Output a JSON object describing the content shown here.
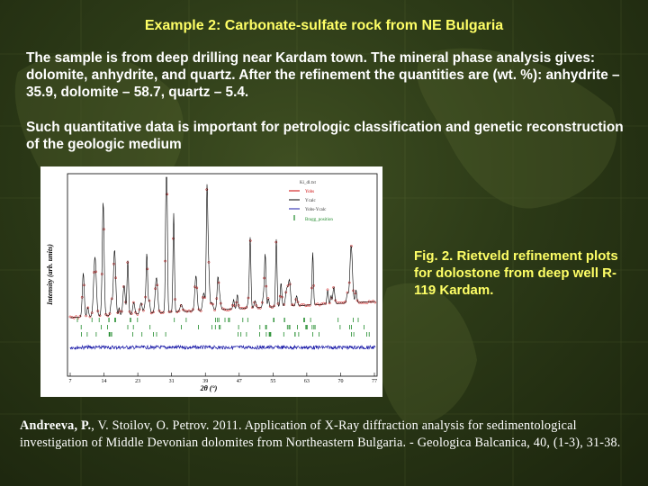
{
  "slide": {
    "title": "Example 2: Carbonate-sulfate rock from NE Bulgaria",
    "paragraph1": "The sample is from deep drilling near Kardam town. The mineral phase analysis gives: dolomite, anhydrite, and quartz. After the refinement the quantities are (wt. %): anhydrite – 35.9, dolomite – 58.7, quartz – 5.4.",
    "paragraph2": "Such quantitative data is important for petrologic classification and genetic reconstruction of the geologic medium",
    "caption": "Fig. 2. Rietveld refinement plots for dolostone from deep well R-119 Kardam.",
    "reference": {
      "authors": "Andreeva, P.",
      "rest": ", V. Stoilov, O. Petrov. 2011. Application of X-Ray diffraction analysis for sedimentological investigation of Middle Devonian dolomites from Northeastern Bulgaria. - Geologica Balcanica, 40, (1-3), 31-38."
    }
  },
  "plot": {
    "ylabel": "Intensity (arb. units)",
    "xlabel": "2θ (°)",
    "xticks": [
      "7",
      "14",
      "23",
      "31",
      "39",
      "47",
      "55",
      "63",
      "70",
      "77"
    ],
    "legend": {
      "heading": "Ki_dl.txt",
      "items": [
        "Yobs",
        "Ycalc",
        "Yobs-Ycalc",
        "Bragg_position"
      ]
    },
    "colors": {
      "yobs": "#cc0000",
      "ycalc": "#000000",
      "diff": "#1a1aa8",
      "bragg": "#1f8a2a"
    }
  }
}
